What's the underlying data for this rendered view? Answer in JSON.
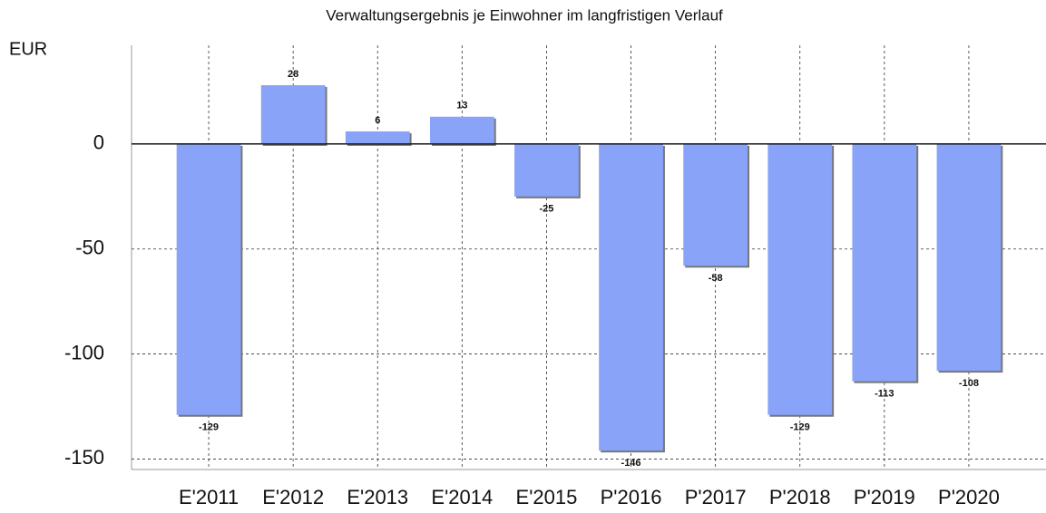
{
  "chart_data": {
    "type": "bar",
    "title": "Verwaltungsergebnis je Einwohner im langfristigen Verlauf",
    "y_label": "EUR",
    "categories": [
      "E'2011",
      "E'2012",
      "E'2013",
      "E'2014",
      "E'2015",
      "P'2016",
      "P'2017",
      "P'2018",
      "P'2019",
      "P'2020"
    ],
    "values": [
      -129,
      28,
      6,
      13,
      -25,
      -146,
      -58,
      -129,
      -113,
      -108
    ],
    "color": "#88a3f7",
    "ylim": [
      -155,
      47
    ],
    "yticks": [
      -150,
      -100,
      -50,
      0
    ],
    "grid": true
  }
}
